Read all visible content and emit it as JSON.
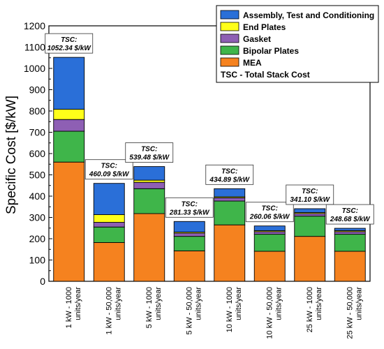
{
  "chart_data": {
    "type": "bar",
    "stacked": true,
    "title": "",
    "xlabel": "",
    "ylabel": "Specific Cost [$/kW]",
    "ylim": [
      0,
      1200
    ],
    "yticks": [
      0,
      100,
      200,
      300,
      400,
      500,
      600,
      700,
      800,
      900,
      1000,
      1100,
      1200
    ],
    "grid": false,
    "legend_position": "top-right",
    "categories": [
      "1 kW - 1000 units/year",
      "1 kW - 50,000 units/year",
      "5 kW - 1000 units/year",
      "5 kW - 50,000 units/year",
      "10 kW - 1000 units/year",
      "10 kW - 50,000 units/year",
      "25 kW - 1000 units/year",
      "25 kW - 50,000 units/year"
    ],
    "series": [
      {
        "name": "MEA",
        "color": "#f5821f",
        "values": [
          560,
          182,
          318,
          143,
          265,
          141,
          211,
          141
        ]
      },
      {
        "name": "Bipolar Plates",
        "color": "#3fb54a",
        "values": [
          145,
          73,
          117,
          68,
          112,
          80,
          95,
          80
        ]
      },
      {
        "name": "Gasket",
        "color": "#8e5fb4",
        "values": [
          55,
          22,
          30,
          15,
          15,
          12,
          12,
          12
        ]
      },
      {
        "name": "End Plates",
        "color": "#ffff19",
        "values": [
          48,
          36,
          10,
          5,
          5,
          5,
          5,
          5
        ]
      },
      {
        "name": "Assembly, Test and Conditioning",
        "color": "#2a6fd8",
        "values": [
          244,
          147,
          64,
          50,
          38,
          22,
          18,
          11
        ]
      }
    ],
    "totals_prefix": "TSC:",
    "totals_labels": [
      "1052.34 $/kW",
      "460.09 $/kW",
      "539.48 $/kW",
      "281.33 $/kW",
      "434.89 $/kW",
      "260.06 $/kW",
      "341.10 $/kW",
      "248.68 $/kW"
    ],
    "legend_extra": "TSC - Total Stack Cost"
  }
}
